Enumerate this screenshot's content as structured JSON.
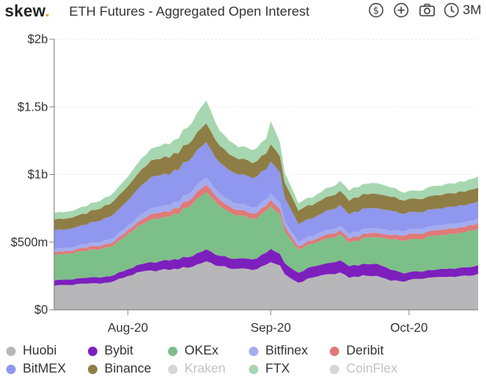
{
  "header": {
    "brand_name": "skew",
    "brand_dot": ".",
    "title": "ETH Futures - Aggregated Open Interest",
    "range_label": "3M",
    "icons": [
      "dollar-icon",
      "plus-icon",
      "camera-icon",
      "clock-icon"
    ]
  },
  "colors": {
    "brand_dot": "#f2a900",
    "Huobi": "#b7b7b9",
    "Bybit": "#7d1fbd",
    "OKEx": "#7dbf88",
    "Bitfinex": "#a3acef",
    "Deribit": "#e07a78",
    "BitMEX": "#8f97ee",
    "Binance": "#8f7d46",
    "FTX": "#a6d7b0",
    "muted": "#d6d6d6"
  },
  "chart_data": {
    "type": "area",
    "stacked": true,
    "title": "ETH Futures - Aggregated Open Interest",
    "xlabel": "",
    "ylabel": "",
    "ylim": [
      0,
      2000
    ],
    "unit": "millions USD",
    "y_ticks": [
      0,
      500,
      1000,
      1500,
      2000
    ],
    "y_tick_labels": [
      "$0",
      "$500m",
      "$1b",
      "$1.5b",
      "$2b"
    ],
    "x_ticks": [
      16,
      47,
      77
    ],
    "x_tick_labels": [
      "Aug-20",
      "Sep-20",
      "Oct-20"
    ],
    "x_range": [
      0,
      92
    ],
    "keyframes": [
      0,
      4,
      8,
      12,
      16,
      19,
      22,
      26,
      30,
      33,
      36,
      40,
      44,
      46,
      47,
      49,
      50,
      53,
      56,
      59,
      62,
      64,
      67,
      70,
      73,
      76,
      79,
      82,
      85,
      88,
      92
    ],
    "series": [
      {
        "name": "Huobi",
        "values": [
          180,
          185,
          195,
          200,
          250,
          280,
          290,
          300,
          320,
          360,
          320,
          300,
          300,
          330,
          360,
          320,
          260,
          200,
          240,
          260,
          270,
          240,
          250,
          250,
          220,
          210,
          230,
          240,
          240,
          250,
          260
        ]
      },
      {
        "name": "Bybit",
        "values": [
          40,
          40,
          45,
          45,
          50,
          55,
          65,
          70,
          80,
          90,
          75,
          75,
          80,
          90,
          95,
          85,
          80,
          75,
          80,
          80,
          90,
          85,
          85,
          90,
          80,
          60,
          55,
          55,
          60,
          60,
          65
        ]
      },
      {
        "name": "OKEx",
        "values": [
          190,
          190,
          205,
          215,
          260,
          300,
          320,
          330,
          380,
          430,
          360,
          320,
          300,
          310,
          320,
          290,
          240,
          170,
          170,
          180,
          190,
          170,
          190,
          200,
          220,
          240,
          240,
          250,
          250,
          260,
          270
        ]
      },
      {
        "name": "Deribit",
        "values": [
          20,
          20,
          25,
          25,
          30,
          35,
          40,
          40,
          50,
          55,
          45,
          40,
          40,
          40,
          45,
          40,
          35,
          25,
          25,
          30,
          30,
          30,
          30,
          30,
          30,
          40,
          40,
          40,
          40,
          40,
          40
        ]
      },
      {
        "name": "Bitfinex",
        "values": [
          25,
          25,
          25,
          30,
          35,
          40,
          45,
          45,
          50,
          55,
          45,
          45,
          45,
          45,
          50,
          45,
          40,
          35,
          35,
          35,
          35,
          35,
          35,
          35,
          35,
          35,
          35,
          35,
          35,
          35,
          35
        ]
      },
      {
        "name": "BitMEX",
        "values": [
          135,
          140,
          150,
          165,
          185,
          210,
          235,
          230,
          250,
          260,
          225,
          220,
          220,
          225,
          235,
          225,
          175,
          130,
          130,
          140,
          150,
          145,
          150,
          150,
          145,
          125,
          125,
          125,
          125,
          125,
          125
        ]
      },
      {
        "name": "Binance",
        "values": [
          80,
          80,
          85,
          95,
          105,
          115,
          125,
          125,
          130,
          140,
          125,
          115,
          115,
          120,
          130,
          120,
          110,
          100,
          100,
          100,
          105,
          105,
          105,
          105,
          105,
          100,
          100,
          100,
          100,
          100,
          100
        ]
      },
      {
        "name": "Kraken",
        "values": [
          0,
          0,
          0,
          0,
          0,
          0,
          0,
          0,
          0,
          0,
          0,
          0,
          0,
          0,
          0,
          0,
          0,
          0,
          0,
          0,
          0,
          0,
          0,
          0,
          0,
          0,
          0,
          0,
          0,
          0,
          0
        ]
      },
      {
        "name": "FTX",
        "values": [
          50,
          50,
          55,
          60,
          70,
          80,
          90,
          100,
          130,
          170,
          110,
          90,
          95,
          110,
          170,
          100,
          70,
          55,
          55,
          65,
          70,
          75,
          75,
          80,
          70,
          60,
          60,
          70,
          70,
          75,
          80
        ]
      },
      {
        "name": "CoinFlex",
        "values": [
          0,
          0,
          0,
          0,
          0,
          0,
          0,
          0,
          0,
          0,
          0,
          0,
          0,
          0,
          0,
          0,
          0,
          0,
          0,
          0,
          0,
          0,
          0,
          0,
          0,
          0,
          0,
          0,
          0,
          0,
          0
        ]
      }
    ],
    "legend": {
      "placement": "bottom",
      "items": [
        "Huobi",
        "Bybit",
        "OKEx",
        "Bitfinex",
        "Deribit",
        "BitMEX",
        "Binance",
        "Kraken",
        "FTX",
        "CoinFlex"
      ],
      "hidden": [
        "Kraken",
        "CoinFlex"
      ]
    },
    "stack_order_bottom_to_top": [
      "Huobi",
      "Bybit",
      "OKEx",
      "Deribit",
      "Bitfinex",
      "BitMEX",
      "Binance",
      "FTX"
    ]
  }
}
